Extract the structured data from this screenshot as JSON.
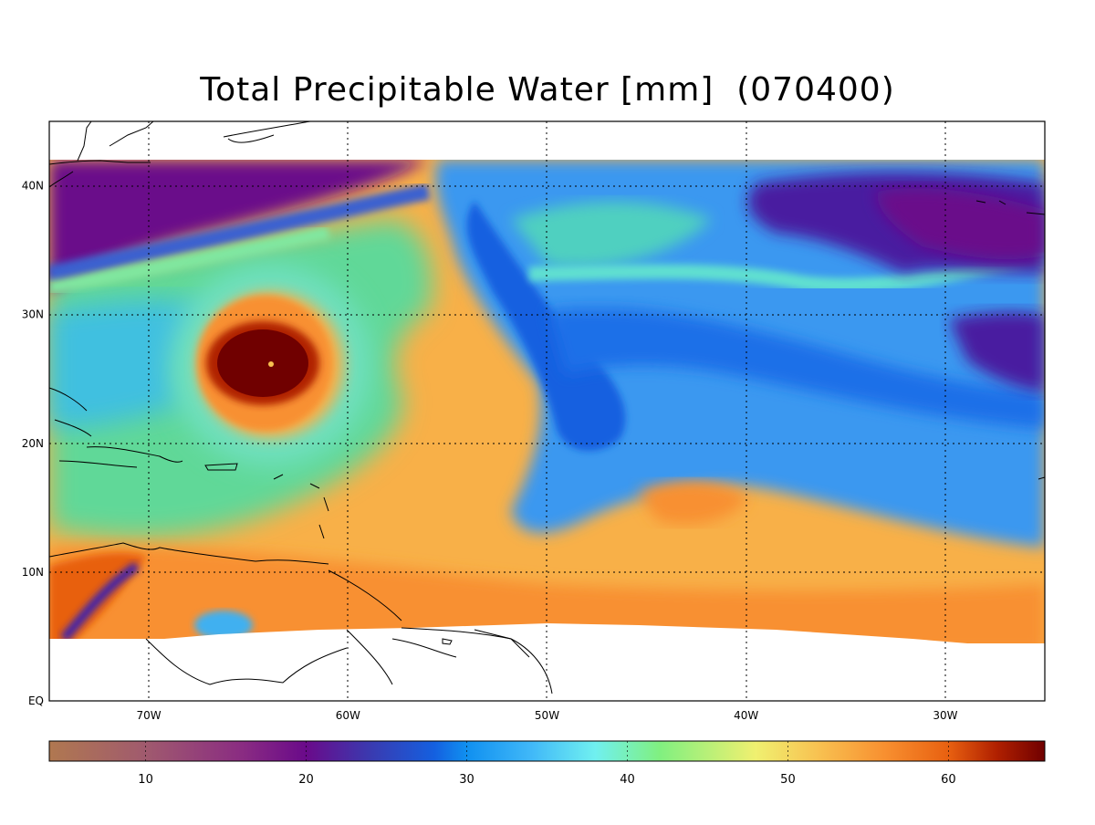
{
  "title": "Total Precipitable Water [mm]  (070400)",
  "map": {
    "lon_range": [
      -75,
      -25
    ],
    "lat_range": [
      0,
      45
    ],
    "grid_style": "dotted",
    "lat_labels": [
      "40N",
      "30N",
      "20N",
      "10N",
      "EQ"
    ],
    "lat_values": [
      40,
      30,
      20,
      10,
      0
    ],
    "lon_labels": [
      "70W",
      "60W",
      "50W",
      "40W",
      "30W"
    ],
    "lon_values": [
      -70,
      -60,
      -50,
      -40,
      -30
    ],
    "features": {
      "hurricane_center": {
        "lon": -64,
        "lat": 26
      },
      "data_coverage_top_lat": 42,
      "data_coverage_bottom_lat": 5
    }
  },
  "colorbar": {
    "range": [
      4,
      66
    ],
    "tick_values": [
      10,
      20,
      30,
      40,
      50,
      60
    ],
    "tick_labels": [
      "10",
      "20",
      "30",
      "40",
      "50",
      "60"
    ],
    "stops": [
      {
        "v": 4,
        "c": "#b07850"
      },
      {
        "v": 10,
        "c": "#a05a6e"
      },
      {
        "v": 16,
        "c": "#8a2c82"
      },
      {
        "v": 20,
        "c": "#6a0a8a"
      },
      {
        "v": 24,
        "c": "#3a3ab0"
      },
      {
        "v": 28,
        "c": "#1460e0"
      },
      {
        "v": 30,
        "c": "#1090f0"
      },
      {
        "v": 34,
        "c": "#40b8f8"
      },
      {
        "v": 38,
        "c": "#70f0f0"
      },
      {
        "v": 42,
        "c": "#80f080"
      },
      {
        "v": 48,
        "c": "#f0f070"
      },
      {
        "v": 52,
        "c": "#f8c050"
      },
      {
        "v": 56,
        "c": "#f89030"
      },
      {
        "v": 60,
        "c": "#e86010"
      },
      {
        "v": 63,
        "c": "#b02000"
      },
      {
        "v": 66,
        "c": "#700000"
      }
    ]
  }
}
